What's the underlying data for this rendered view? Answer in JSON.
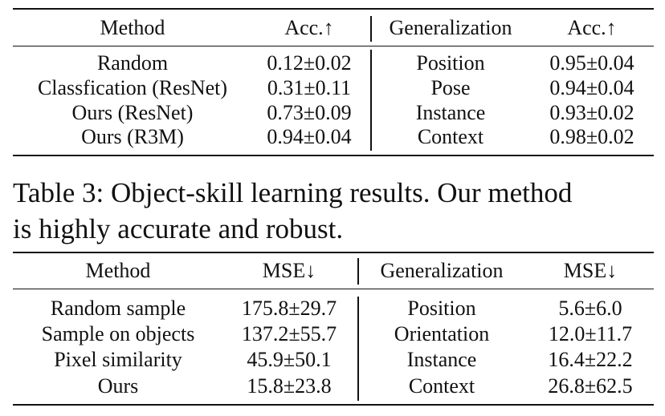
{
  "table3": {
    "headers": [
      "Method",
      "Acc.↑",
      "Generalization",
      "Acc.↑"
    ],
    "rows": [
      [
        "Random",
        "0.12±0.02",
        "Position",
        "0.95±0.04"
      ],
      [
        "Classfication (ResNet)",
        "0.31±0.11",
        "Pose",
        "0.94±0.04"
      ],
      [
        "Ours (ResNet)",
        "0.73±0.09",
        "Instance",
        "0.93±0.02"
      ],
      [
        "Ours (R3M)",
        "0.94±0.04",
        "Context",
        "0.98±0.02"
      ]
    ]
  },
  "caption": {
    "line1": "Table 3: Object-skill learning results. Our method",
    "line2": "is highly accurate and robust."
  },
  "table4": {
    "headers": [
      "Method",
      "MSE↓",
      "Generalization",
      "MSE↓"
    ],
    "rows": [
      [
        "Random sample",
        "175.8±29.7",
        "Position",
        "5.6±6.0"
      ],
      [
        "Sample on objects",
        "137.2±55.7",
        "Orientation",
        "12.0±11.7"
      ],
      [
        "Pixel similarity",
        "45.9±50.1",
        "Instance",
        "16.4±22.2"
      ],
      [
        "Ours",
        "15.8±23.8",
        "Context",
        "26.8±62.5"
      ]
    ]
  }
}
